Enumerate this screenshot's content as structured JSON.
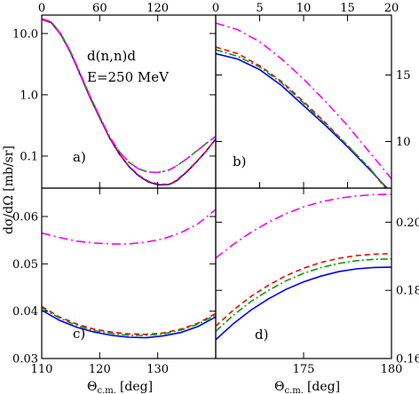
{
  "chart_data": {
    "type": "line",
    "ylabel": "dσ/dΩ [mb/sr]",
    "annotation": [
      "d(n,n)d",
      "E=250 MeV"
    ],
    "xlabel_bottom_left": {
      "base": "Θ",
      "sub": "c.m.",
      "unit": "[deg]"
    },
    "xlabel_bottom_right": {
      "base": "Θ",
      "sub": "c.m.",
      "unit": "[deg]"
    },
    "series_styles": [
      {
        "id": "blue_solid",
        "color": "#0000ff",
        "dash": ""
      },
      {
        "id": "red_dashed",
        "color": "#ff0000",
        "dash": "6,4"
      },
      {
        "id": "green_dashdot",
        "color": "#00a000",
        "dash": "8,3,2,3"
      },
      {
        "id": "magenta_dashdot",
        "color": "#ff00ff",
        "dash": "10,4,2,4"
      }
    ],
    "panels": [
      {
        "label": "a)",
        "xlim": [
          0,
          180
        ],
        "ylim": [
          0.03,
          20
        ],
        "yscale": "log",
        "xticks": [
          0,
          60,
          120
        ],
        "xticks_top": true,
        "yticks": [
          10.0,
          1.0,
          0.1
        ],
        "ytick_labels": [
          "10.0",
          "1.0",
          "0.1"
        ],
        "yticks_side": "left",
        "series": [
          {
            "style": "blue_solid",
            "x": [
              0,
              10,
              20,
              30,
              40,
              50,
              60,
              70,
              80,
              90,
              100,
              110,
              120,
              130,
              135,
              140,
              150,
              160,
              170,
              180
            ],
            "y": [
              17,
              15,
              9.5,
              4.8,
              2.1,
              0.9,
              0.42,
              0.2,
              0.11,
              0.068,
              0.048,
              0.038,
              0.034,
              0.034,
              0.036,
              0.04,
              0.055,
              0.08,
              0.12,
              0.19
            ]
          },
          {
            "style": "red_dashed",
            "x": [
              0,
              10,
              20,
              30,
              40,
              50,
              60,
              70,
              80,
              90,
              100,
              110,
              120,
              130,
              135,
              140,
              150,
              160,
              170,
              180
            ],
            "y": [
              17,
              15,
              9.5,
              4.8,
              2.1,
              0.9,
              0.42,
              0.2,
              0.11,
              0.069,
              0.049,
              0.039,
              0.035,
              0.0345,
              0.0365,
              0.041,
              0.056,
              0.081,
              0.12,
              0.19
            ]
          },
          {
            "style": "green_dashdot",
            "x": [
              0,
              10,
              20,
              30,
              40,
              50,
              60,
              70,
              80,
              90,
              100,
              110,
              120,
              130,
              135,
              140,
              150,
              160,
              170,
              180
            ],
            "y": [
              17.5,
              15.5,
              9.8,
              5,
              2.2,
              0.95,
              0.44,
              0.21,
              0.12,
              0.08,
              0.062,
              0.055,
              0.054,
              0.058,
              0.063,
              0.07,
              0.09,
              0.12,
              0.16,
              0.21
            ]
          },
          {
            "style": "magenta_dashdot",
            "x": [
              0,
              10,
              20,
              30,
              40,
              50,
              60,
              70,
              80,
              90,
              100,
              110,
              120,
              130,
              135,
              140,
              150,
              160,
              170,
              180
            ],
            "y": [
              17.5,
              15.5,
              9.8,
              5,
              2.2,
              0.95,
              0.44,
              0.21,
              0.12,
              0.08,
              0.062,
              0.055,
              0.054,
              0.058,
              0.063,
              0.07,
              0.09,
              0.12,
              0.16,
              0.21
            ]
          }
        ]
      },
      {
        "label": "b)",
        "xlim": [
          0,
          20
        ],
        "ylim": [
          6.5,
          19.5
        ],
        "yscale": "linear",
        "xticks": [
          0,
          5,
          10,
          15,
          20
        ],
        "xticks_top": true,
        "yticks": [
          10,
          15
        ],
        "ytick_labels": [
          "10",
          "15"
        ],
        "yticks_side": "right",
        "series": [
          {
            "style": "blue_solid",
            "x": [
              0,
              2.5,
              5,
              7.5,
              10,
              12.5,
              15,
              17.5,
              19.5
            ],
            "y": [
              16.6,
              16.2,
              15.4,
              14.2,
              12.7,
              11.2,
              9.6,
              7.9,
              6.5
            ]
          },
          {
            "style": "red_dashed",
            "x": [
              0,
              2.5,
              5,
              7.5,
              10,
              12.5,
              15,
              17.5,
              19.3
            ],
            "y": [
              17.1,
              16.6,
              15.7,
              14.5,
              13,
              11.4,
              9.7,
              8,
              6.5
            ]
          },
          {
            "style": "green_dashdot",
            "x": [
              0,
              2.5,
              5,
              7.5,
              10,
              12.5,
              15,
              17.5,
              19.4
            ],
            "y": [
              16.9,
              16.4,
              15.6,
              14.4,
              12.9,
              11.3,
              9.7,
              8,
              6.5
            ]
          },
          {
            "style": "magenta_dashdot",
            "x": [
              0,
              2.5,
              5,
              7.5,
              10,
              12.5,
              15,
              17.5,
              20
            ],
            "y": [
              18.9,
              18.4,
              17.5,
              16.2,
              14.7,
              13,
              11.2,
              9.2,
              7.2
            ]
          }
        ]
      },
      {
        "label": "c)",
        "xlim": [
          110,
          140
        ],
        "ylim": [
          0.03,
          0.066
        ],
        "yscale": "linear",
        "xticks": [
          110,
          120,
          130
        ],
        "xticks_top": false,
        "yticks": [
          0.03,
          0.04,
          0.05,
          0.06
        ],
        "ytick_labels": [
          "0.03",
          "0.04",
          "0.05",
          "0.06"
        ],
        "yticks_side": "left",
        "series": [
          {
            "style": "blue_solid",
            "x": [
              110,
              113,
              116,
              119,
              122,
              125,
              128,
              131,
              134,
              137,
              140
            ],
            "y": [
              0.0402,
              0.0381,
              0.0366,
              0.0356,
              0.0349,
              0.0345,
              0.0344,
              0.0348,
              0.0355,
              0.0368,
              0.0388
            ]
          },
          {
            "style": "red_dashed",
            "x": [
              110,
              113,
              116,
              119,
              122,
              125,
              128,
              131,
              134,
              137,
              140
            ],
            "y": [
              0.041,
              0.0388,
              0.0373,
              0.0362,
              0.0356,
              0.0352,
              0.0351,
              0.0354,
              0.0362,
              0.0375,
              0.0395
            ]
          },
          {
            "style": "green_dashdot",
            "x": [
              110,
              113,
              116,
              119,
              122,
              125,
              128,
              131,
              134,
              137,
              140
            ],
            "y": [
              0.0407,
              0.0386,
              0.037,
              0.0359,
              0.0353,
              0.0349,
              0.0349,
              0.0352,
              0.036,
              0.0373,
              0.0392
            ]
          },
          {
            "style": "magenta_dashdot",
            "x": [
              110,
              113,
              116,
              119,
              122,
              125,
              128,
              131,
              134,
              137,
              140
            ],
            "y": [
              0.0565,
              0.0556,
              0.0548,
              0.0544,
              0.0542,
              0.0542,
              0.0546,
              0.0553,
              0.0566,
              0.0585,
              0.0615
            ]
          }
        ]
      },
      {
        "label": "d)",
        "xlim": [
          170,
          180
        ],
        "ylim": [
          0.16,
          0.21
        ],
        "yscale": "linear",
        "xticks": [
          175,
          180
        ],
        "xticks_top": false,
        "yticks": [
          0.16,
          0.18,
          0.2
        ],
        "ytick_labels": [
          "0.16",
          "0.18",
          "0.20"
        ],
        "yticks_side": "right",
        "series": [
          {
            "style": "blue_solid",
            "x": [
              170,
              171,
              172,
              173,
              174,
              175,
              176,
              177,
              178,
              179,
              180
            ],
            "y": [
              0.1655,
              0.1702,
              0.1742,
              0.1775,
              0.1803,
              0.1825,
              0.1842,
              0.1855,
              0.1863,
              0.1867,
              0.1868
            ]
          },
          {
            "style": "red_dashed",
            "x": [
              170,
              171,
              172,
              173,
              174,
              175,
              176,
              177,
              178,
              179,
              180
            ],
            "y": [
              0.1695,
              0.1742,
              0.1782,
              0.1815,
              0.1843,
              0.1865,
              0.1882,
              0.1894,
              0.1902,
              0.1906,
              0.1908
            ]
          },
          {
            "style": "green_dashdot",
            "x": [
              170,
              171,
              172,
              173,
              174,
              175,
              176,
              177,
              178,
              179,
              180
            ],
            "y": [
              0.168,
              0.1727,
              0.1767,
              0.18,
              0.1828,
              0.185,
              0.1867,
              0.1879,
              0.1887,
              0.1891,
              0.1892
            ]
          },
          {
            "style": "magenta_dashdot",
            "x": [
              170,
              171,
              172,
              173,
              174,
              175,
              176,
              177,
              178,
              179,
              180
            ],
            "y": [
              0.1895,
              0.1935,
              0.197,
              0.2,
              0.2025,
              0.2045,
              0.206,
              0.207,
              0.2077,
              0.2081,
              0.2082
            ]
          }
        ]
      }
    ]
  }
}
